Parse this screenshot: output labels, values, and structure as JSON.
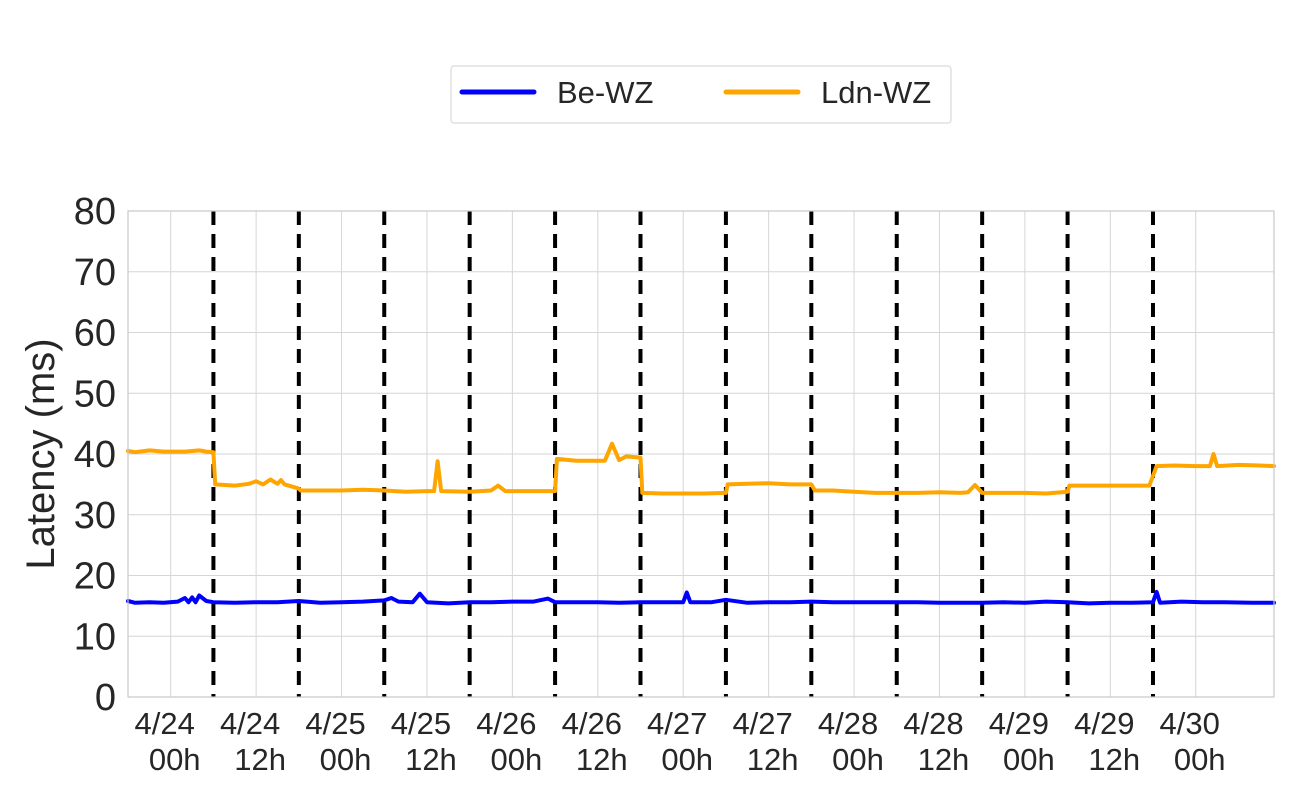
{
  "chart_data": {
    "type": "line",
    "ylabel": "Latency (ms)",
    "xlabel": "",
    "ylim": [
      0,
      80
    ],
    "yticks": [
      0,
      10,
      20,
      30,
      40,
      50,
      60,
      70,
      80
    ],
    "xlim": [
      "4/23 18h",
      "4/30 11h"
    ],
    "xticks": [
      {
        "date": "4/24",
        "hour": "00h"
      },
      {
        "date": "4/24",
        "hour": "12h"
      },
      {
        "date": "4/25",
        "hour": "00h"
      },
      {
        "date": "4/25",
        "hour": "12h"
      },
      {
        "date": "4/26",
        "hour": "00h"
      },
      {
        "date": "4/26",
        "hour": "12h"
      },
      {
        "date": "4/27",
        "hour": "00h"
      },
      {
        "date": "4/27",
        "hour": "12h"
      },
      {
        "date": "4/28",
        "hour": "00h"
      },
      {
        "date": "4/28",
        "hour": "12h"
      },
      {
        "date": "4/29",
        "hour": "00h"
      },
      {
        "date": "4/29",
        "hour": "12h"
      },
      {
        "date": "4/30",
        "hour": "00h"
      }
    ],
    "vlines": [
      "4/24 06h",
      "4/24 18h",
      "4/25 06h",
      "4/25 18h",
      "4/26 06h",
      "4/26 18h",
      "4/27 06h",
      "4/27 18h",
      "4/28 06h",
      "4/28 18h",
      "4/29 06h",
      "4/29 18h"
    ],
    "grid": true,
    "legend_position": "top-center, outside plot",
    "series": [
      {
        "name": "Be-WZ",
        "color": "#0000ff",
        "points": [
          [
            "4/23 18h",
            15.8
          ],
          [
            "4/23 19h",
            15.5
          ],
          [
            "4/23 21h",
            15.6
          ],
          [
            "4/23 23h",
            15.5
          ],
          [
            "4/24 01h",
            15.7
          ],
          [
            "4/24 02h",
            16.3
          ],
          [
            "4/24 02h30",
            15.6
          ],
          [
            "4/24 03h",
            16.4
          ],
          [
            "4/24 03h30",
            15.6
          ],
          [
            "4/24 04h",
            16.7
          ],
          [
            "4/24 05h",
            15.8
          ],
          [
            "4/24 06h",
            15.6
          ],
          [
            "4/24 09h",
            15.5
          ],
          [
            "4/24 12h",
            15.6
          ],
          [
            "4/24 15h",
            15.6
          ],
          [
            "4/24 18h",
            15.8
          ],
          [
            "4/24 21h",
            15.5
          ],
          [
            "4/25 00h",
            15.6
          ],
          [
            "4/25 03h",
            15.7
          ],
          [
            "4/25 06h",
            15.9
          ],
          [
            "4/25 07h",
            16.3
          ],
          [
            "4/25 08h",
            15.7
          ],
          [
            "4/25 10h",
            15.6
          ],
          [
            "4/25 11h",
            17.0
          ],
          [
            "4/25 12h",
            15.6
          ],
          [
            "4/25 15h",
            15.4
          ],
          [
            "4/25 18h",
            15.6
          ],
          [
            "4/25 21h",
            15.6
          ],
          [
            "4/26 00h",
            15.7
          ],
          [
            "4/26 03h",
            15.7
          ],
          [
            "4/26 05h",
            16.2
          ],
          [
            "4/26 06h",
            15.6
          ],
          [
            "4/26 09h",
            15.6
          ],
          [
            "4/26 12h",
            15.6
          ],
          [
            "4/26 15h",
            15.5
          ],
          [
            "4/26 18h",
            15.6
          ],
          [
            "4/26 21h",
            15.6
          ],
          [
            "4/27 00h",
            15.6
          ],
          [
            "4/27 00h30",
            17.2
          ],
          [
            "4/27 01h",
            15.6
          ],
          [
            "4/27 04h",
            15.6
          ],
          [
            "4/27 06h",
            16.0
          ],
          [
            "4/27 09h",
            15.5
          ],
          [
            "4/27 12h",
            15.6
          ],
          [
            "4/27 15h",
            15.6
          ],
          [
            "4/27 18h",
            15.7
          ],
          [
            "4/27 21h",
            15.6
          ],
          [
            "4/28 00h",
            15.6
          ],
          [
            "4/28 03h",
            15.6
          ],
          [
            "4/28 06h",
            15.6
          ],
          [
            "4/28 09h",
            15.6
          ],
          [
            "4/28 12h",
            15.5
          ],
          [
            "4/28 15h",
            15.5
          ],
          [
            "4/28 18h",
            15.5
          ],
          [
            "4/28 21h",
            15.6
          ],
          [
            "4/29 00h",
            15.5
          ],
          [
            "4/29 03h",
            15.7
          ],
          [
            "4/29 06h",
            15.6
          ],
          [
            "4/29 09h",
            15.4
          ],
          [
            "4/29 12h",
            15.5
          ],
          [
            "4/29 15h",
            15.5
          ],
          [
            "4/29 18h",
            15.6
          ],
          [
            "4/29 18h30",
            17.3
          ],
          [
            "4/29 19h",
            15.5
          ],
          [
            "4/29 22h",
            15.7
          ],
          [
            "4/30 01h",
            15.6
          ],
          [
            "4/30 04h",
            15.6
          ],
          [
            "4/30 08h",
            15.5
          ],
          [
            "4/30 11h",
            15.5
          ]
        ]
      },
      {
        "name": "Ldn-WZ",
        "color": "#ffa500",
        "points": [
          [
            "4/23 18h",
            40.5
          ],
          [
            "4/23 19h",
            40.3
          ],
          [
            "4/23 21h",
            40.6
          ],
          [
            "4/23 23h",
            40.4
          ],
          [
            "4/24 02h",
            40.4
          ],
          [
            "4/24 04h",
            40.6
          ],
          [
            "4/24 05h",
            40.4
          ],
          [
            "4/24 06h",
            40.3
          ],
          [
            "4/24 06h15",
            35.0
          ],
          [
            "4/24 09h",
            34.8
          ],
          [
            "4/24 11h",
            35.1
          ],
          [
            "4/24 12h",
            35.5
          ],
          [
            "4/24 13h",
            35.0
          ],
          [
            "4/24 14h",
            35.8
          ],
          [
            "4/24 15h",
            35.1
          ],
          [
            "4/24 15h30",
            35.7
          ],
          [
            "4/24 16h",
            35.0
          ],
          [
            "4/24 18h",
            34.3
          ],
          [
            "4/24 18h15",
            34.0
          ],
          [
            "4/24 21h",
            34.0
          ],
          [
            "4/25 00h",
            34.0
          ],
          [
            "4/25 03h",
            34.1
          ],
          [
            "4/25 06h",
            34.0
          ],
          [
            "4/25 09h",
            33.8
          ],
          [
            "4/25 12h",
            33.9
          ],
          [
            "4/25 13h",
            33.9
          ],
          [
            "4/25 13h30",
            38.8
          ],
          [
            "4/25 14h",
            33.9
          ],
          [
            "4/25 18h",
            33.8
          ],
          [
            "4/25 21h",
            34.0
          ],
          [
            "4/25 22h",
            34.8
          ],
          [
            "4/25 23h",
            33.9
          ],
          [
            "4/26 03h",
            33.9
          ],
          [
            "4/26 06h",
            33.9
          ],
          [
            "4/26 06h15",
            39.2
          ],
          [
            "4/26 09h",
            38.9
          ],
          [
            "4/26 12h",
            38.9
          ],
          [
            "4/26 13h",
            38.9
          ],
          [
            "4/26 14h",
            41.7
          ],
          [
            "4/26 15h",
            39.0
          ],
          [
            "4/26 16h",
            39.6
          ],
          [
            "4/26 18h",
            39.4
          ],
          [
            "4/26 18h15",
            33.6
          ],
          [
            "4/26 21h",
            33.5
          ],
          [
            "4/27 00h",
            33.5
          ],
          [
            "4/27 03h",
            33.5
          ],
          [
            "4/27 06h",
            33.6
          ],
          [
            "4/27 06h15",
            35.0
          ],
          [
            "4/27 09h",
            35.1
          ],
          [
            "4/27 12h",
            35.2
          ],
          [
            "4/27 15h",
            35.0
          ],
          [
            "4/27 18h",
            35.0
          ],
          [
            "4/27 18h30",
            34.0
          ],
          [
            "4/27 21h",
            34.0
          ],
          [
            "4/28 00h",
            33.8
          ],
          [
            "4/28 03h",
            33.6
          ],
          [
            "4/28 06h",
            33.6
          ],
          [
            "4/28 09h",
            33.6
          ],
          [
            "4/28 12h",
            33.7
          ],
          [
            "4/28 15h",
            33.6
          ],
          [
            "4/28 16h",
            33.7
          ],
          [
            "4/28 17h",
            34.9
          ],
          [
            "4/28 18h",
            33.6
          ],
          [
            "4/28 21h",
            33.6
          ],
          [
            "4/29 00h",
            33.6
          ],
          [
            "4/29 03h",
            33.5
          ],
          [
            "4/29 06h",
            33.8
          ],
          [
            "4/29 06h15",
            34.8
          ],
          [
            "4/29 09h",
            34.8
          ],
          [
            "4/29 12h",
            34.8
          ],
          [
            "4/29 15h",
            34.8
          ],
          [
            "4/29 17h30",
            34.8
          ],
          [
            "4/29 18h30",
            38.0
          ],
          [
            "4/29 21h",
            38.1
          ],
          [
            "4/30 00h",
            38.0
          ],
          [
            "4/30 02h",
            38.0
          ],
          [
            "4/30 02h30",
            40.0
          ],
          [
            "4/30 03h",
            38.0
          ],
          [
            "4/30 06h",
            38.2
          ],
          [
            "4/30 09h",
            38.1
          ],
          [
            "4/30 11h",
            38.0
          ]
        ]
      }
    ]
  }
}
